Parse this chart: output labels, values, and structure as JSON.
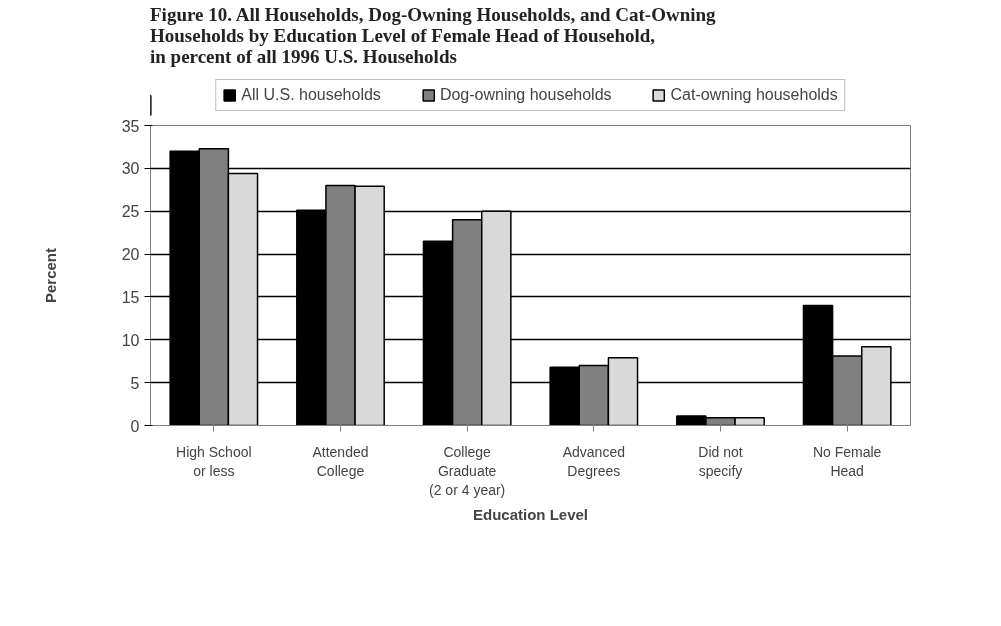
{
  "chart_data": {
    "type": "bar",
    "title": "Figure 10.  All Households, Dog-Owning Households, and Cat-Owning\nHouseholds by Education Level of Female Head of Household,\nin percent of all 1996 U.S. Households",
    "xlabel": "Education Level",
    "ylabel": "Percent",
    "categories": [
      "High School\nor less",
      "Attended\nCollege",
      "College\nGraduate\n(2 or 4 year)",
      "Advanced\nDegrees",
      "Did not\nspecify",
      "No Female\nHead"
    ],
    "series": [
      {
        "name": "All U.S. households",
        "color": "#000000",
        "values": [
          32.0,
          25.1,
          21.5,
          6.8,
          1.1,
          14.0
        ]
      },
      {
        "name": "Dog-owning households",
        "color": "#808080",
        "values": [
          32.3,
          28.0,
          24.0,
          7.0,
          0.9,
          8.1
        ]
      },
      {
        "name": "Cat-owning households",
        "color": "#d9d9d9",
        "values": [
          29.4,
          27.9,
          25.0,
          7.9,
          0.9,
          9.2
        ]
      }
    ],
    "ylim": [
      0,
      35
    ],
    "yticks": [
      0,
      5,
      10,
      15,
      20,
      25,
      30,
      35
    ],
    "grid": "y",
    "legend": "top"
  }
}
